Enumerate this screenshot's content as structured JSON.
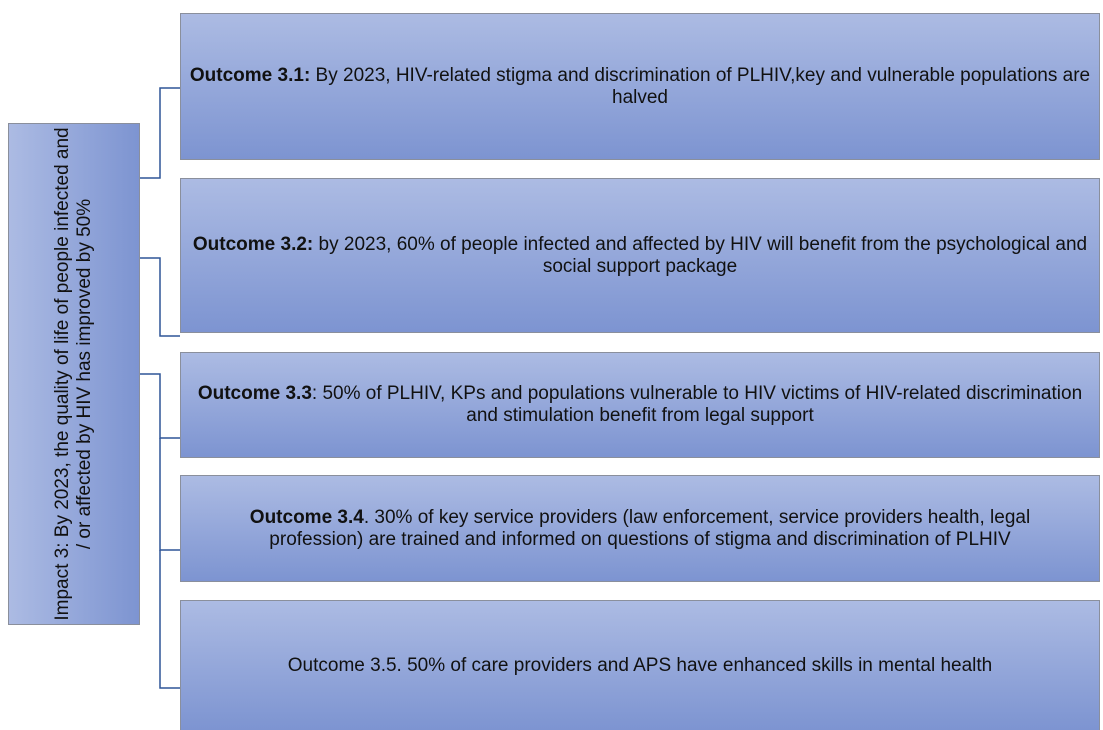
{
  "impact": {
    "text": "Impact 3: By 2023, the quality of life of people infected and / or affected by HIV has improved by 50%"
  },
  "outcomes": [
    {
      "label": "Outcome 3.1:",
      "text": " By 2023, HIV-related stigma and discrimination of PLHIV,key and vulnerable populations are halved"
    },
    {
      "label": "Outcome 3.2:",
      "text": " by 2023, 60% of people infected and affected by HIV will benefit from the psychological and social support package"
    },
    {
      "label": "Outcome 3.3",
      "text": ": 50% of PLHIV, KPs and populations vulnerable to HIV victims of HIV-related discrimination and stimulation benefit from legal support"
    },
    {
      "label": "Outcome 3.4",
      "text": ". 30% of key service providers (law enforcement, service providers health, legal profession) are trained and informed on questions of stigma and discrimination of PLHIV"
    },
    {
      "text": "Outcome 3.5. 50% of care providers and APS have enhanced skills in mental health"
    }
  ]
}
